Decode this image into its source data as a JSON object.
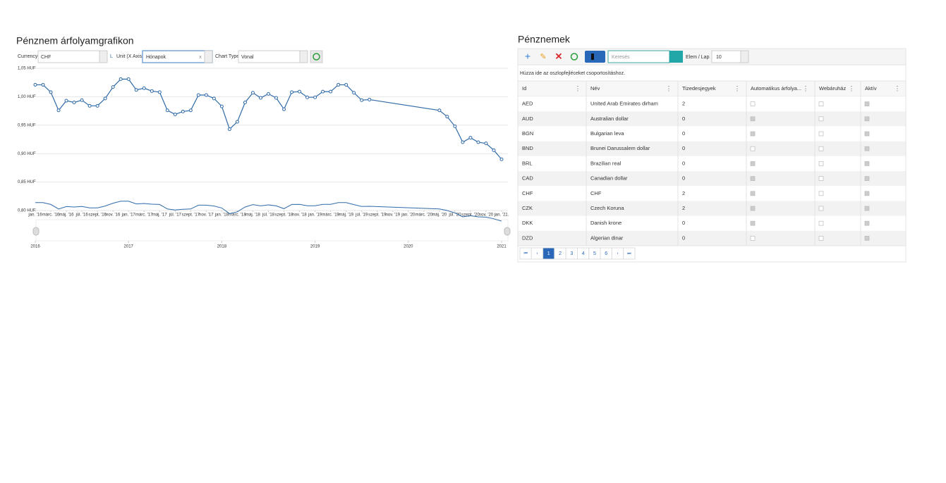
{
  "chart_panel": {
    "title": "Pénznem árfolyamgrafikon",
    "marker": "L",
    "controls": [
      {
        "label": "Currency",
        "value": "CHF"
      },
      {
        "label": "Unit (X Axis)",
        "value": "Hónapok"
      },
      {
        "label": "Chart Type",
        "value": "Vonal"
      }
    ]
  },
  "chart_data": {
    "type": "line",
    "color": "#2f6aa8",
    "grid": true,
    "x": [
      "2016-01",
      "2016-02",
      "2016-03",
      "2016-04",
      "2016-05",
      "2016-06",
      "2016-07",
      "2016-08",
      "2016-09",
      "2016-10",
      "2016-11",
      "2016-12",
      "2017-01",
      "2017-02",
      "2017-03",
      "2017-04",
      "2017-05",
      "2017-06",
      "2017-07",
      "2017-08",
      "2017-09",
      "2017-10",
      "2017-11",
      "2017-12",
      "2018-01",
      "2018-02",
      "2018-03",
      "2018-04",
      "2018-05",
      "2018-06",
      "2018-07",
      "2018-08",
      "2018-09",
      "2018-10",
      "2018-11",
      "2018-12",
      "2019-01",
      "2019-02",
      "2019-03",
      "2019-04",
      "2019-05",
      "2019-06",
      "2019-07",
      "2019-08",
      "2020-05",
      "2020-06",
      "2020-07",
      "2020-08",
      "2020-09",
      "2020-10",
      "2020-11",
      "2020-12",
      "2021-01"
    ],
    "series": [
      {
        "values": [
          1.021,
          1.021,
          1.008,
          0.976,
          0.993,
          0.99,
          0.994,
          0.984,
          0.984,
          0.997,
          1.017,
          1.031,
          1.031,
          1.012,
          1.015,
          1.01,
          1.008,
          0.976,
          0.969,
          0.974,
          0.976,
          1.003,
          1.003,
          0.997,
          0.983,
          0.943,
          0.956,
          0.99,
          1.007,
          0.998,
          1.005,
          0.998,
          0.978,
          1.008,
          1.009,
          0.999,
          0.999,
          1.009,
          1.009,
          1.021,
          1.021,
          1.007,
          0.994,
          0.995,
          0.976,
          0.965,
          0.948,
          0.92,
          0.928,
          0.92,
          0.918,
          0.906,
          0.89
        ]
      }
    ],
    "xlim": [
      "2016-01",
      "2021-01"
    ],
    "xticks": [
      {
        "value": "2016-01",
        "label": "jan. '16"
      },
      {
        "value": "2016-03",
        "label": "márc. '16"
      },
      {
        "value": "2016-05",
        "label": "máj. '16"
      },
      {
        "value": "2016-07",
        "label": "júl. '16"
      },
      {
        "value": "2016-09",
        "label": "szept. '16"
      },
      {
        "value": "2016-11",
        "label": "nov. '16"
      },
      {
        "value": "2017-01",
        "label": "jan. '17"
      },
      {
        "value": "2017-03",
        "label": "márc. '17"
      },
      {
        "value": "2017-05",
        "label": "máj. '17"
      },
      {
        "value": "2017-07",
        "label": "júl. '17"
      },
      {
        "value": "2017-09",
        "label": "szept. '17"
      },
      {
        "value": "2017-11",
        "label": "nov. '17"
      },
      {
        "value": "2018-01",
        "label": "jan. '18"
      },
      {
        "value": "2018-03",
        "label": "márc. '18"
      },
      {
        "value": "2018-05",
        "label": "máj. '18"
      },
      {
        "value": "2018-07",
        "label": "júl. '18"
      },
      {
        "value": "2018-09",
        "label": "szept. '18"
      },
      {
        "value": "2018-11",
        "label": "nov. '18"
      },
      {
        "value": "2019-01",
        "label": "jan. '19"
      },
      {
        "value": "2019-03",
        "label": "márc. '19"
      },
      {
        "value": "2019-05",
        "label": "máj. '19"
      },
      {
        "value": "2019-07",
        "label": "júl. '19"
      },
      {
        "value": "2019-09",
        "label": "szept. '19"
      },
      {
        "value": "2019-11",
        "label": "nov. '19"
      },
      {
        "value": "2020-01",
        "label": "jan. '20"
      },
      {
        "value": "2020-03",
        "label": "márc. '20"
      },
      {
        "value": "2020-05",
        "label": "máj. '20"
      },
      {
        "value": "2020-07",
        "label": "júl. '20"
      },
      {
        "value": "2020-09",
        "label": "szept. '20"
      },
      {
        "value": "2020-11",
        "label": "nov. '20"
      },
      {
        "value": "2021-01",
        "label": "jan. '21."
      }
    ],
    "ylim": [
      0.8,
      1.05
    ],
    "yticks": [
      {
        "value": 0.8,
        "label": "0,80 HUF"
      },
      {
        "value": 0.85,
        "label": "0,85 HUF"
      },
      {
        "value": 0.9,
        "label": "0,90 HUF"
      },
      {
        "value": 0.95,
        "label": "0,95 HUF"
      },
      {
        "value": 1.0,
        "label": "1,00 HUF"
      },
      {
        "value": 1.05,
        "label": "1,05 HUF"
      }
    ],
    "navigator_ticks": [
      {
        "value": "2016-01",
        "label": "2016"
      },
      {
        "value": "2017-01",
        "label": "2017"
      },
      {
        "value": "2018-01",
        "label": "2018"
      },
      {
        "value": "2019-01",
        "label": "2019"
      },
      {
        "value": "2020-01",
        "label": "2020"
      },
      {
        "value": "2021-01",
        "label": "2021"
      }
    ]
  },
  "table_panel": {
    "title": "Pénznemek",
    "search_placeholder": "Keresés",
    "page_size_label": "Elem / Lap",
    "page_size": 10,
    "group_hint": "Húzza ide az oszlopfejléceket csoportosításhoz.",
    "columns": [
      "Id",
      "Név",
      "Tizedesjegyek",
      "Automatikus árfolya...",
      "Webáruház",
      "Aktív"
    ],
    "rows": [
      [
        "AED",
        "United Arab Emirates dirham",
        2,
        false,
        false,
        true
      ],
      [
        "AUD",
        "Australian dollar",
        0,
        true,
        false,
        true
      ],
      [
        "BGN",
        "Bulgarian leva",
        0,
        true,
        false,
        true
      ],
      [
        "BND",
        "Brunei Darussalem dollar",
        0,
        false,
        false,
        true
      ],
      [
        "BRL",
        "Brazilian real",
        0,
        true,
        false,
        true
      ],
      [
        "CAD",
        "Canadian dollar",
        0,
        true,
        false,
        true
      ],
      [
        "CHF",
        "CHF",
        2,
        true,
        false,
        true
      ],
      [
        "CZK",
        "Czech Koruna",
        2,
        true,
        false,
        true
      ],
      [
        "DKK",
        "Danish krone",
        0,
        true,
        false,
        true
      ],
      [
        "DZD",
        "Algerian dinar",
        0,
        false,
        false,
        true
      ]
    ],
    "pages": [
      1,
      2,
      3,
      4,
      5,
      6
    ],
    "current_page": 1
  }
}
